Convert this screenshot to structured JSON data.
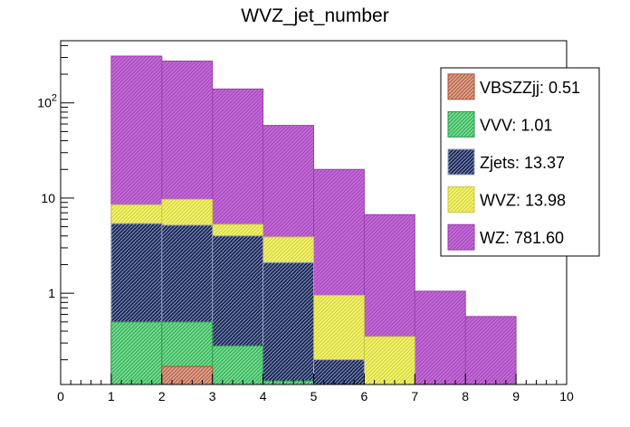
{
  "chart_data": {
    "type": "bar",
    "subtype": "stacked-step-histogram",
    "title": "WVZ_jet_number",
    "xlabel": "",
    "ylabel": "",
    "xlim": [
      0,
      10
    ],
    "ylim": [
      0.11,
      450
    ],
    "yscale": "log",
    "x_ticks": [
      "0",
      "1",
      "2",
      "3",
      "4",
      "5",
      "6",
      "7",
      "8",
      "9",
      "10"
    ],
    "y_ticks": [
      {
        "value": 1,
        "base": "1",
        "exp": ""
      },
      {
        "value": 10,
        "base": "10",
        "exp": ""
      },
      {
        "value": 100,
        "base": "10",
        "exp": "2"
      }
    ],
    "bin_edges": [
      1,
      2,
      3,
      4,
      5,
      6,
      7,
      8,
      9
    ],
    "series": [
      {
        "name": "VBSZZjj",
        "legend": "VBSZZjj: 0.51",
        "color": "#d9a08c",
        "hatch": "#b05030",
        "cumulative": [
          0,
          0.17,
          0,
          0,
          0,
          0,
          0,
          0
        ]
      },
      {
        "name": "VVV",
        "legend": "VVV: 1.01",
        "color": "#6fdc8c",
        "hatch": "#2d9a50",
        "cumulative": [
          0.5,
          0.5,
          0.28,
          0.12,
          0,
          0,
          0,
          0
        ]
      },
      {
        "name": "Zjets",
        "legend": "Zjets: 13.37",
        "color": "#1a2a5a",
        "hatch": "#9aa0c0",
        "cumulative": [
          5.4,
          5.2,
          4.0,
          2.1,
          0.2,
          0,
          0,
          0
        ]
      },
      {
        "name": "WVZ",
        "legend": "WVZ: 13.98",
        "color": "#f4f46a",
        "hatch": "#c8c840",
        "cumulative": [
          8.5,
          9.7,
          5.3,
          3.9,
          0.95,
          0.35,
          0,
          0
        ]
      },
      {
        "name": "WZ",
        "legend": "WZ: 781.60",
        "color": "#c46ad8",
        "hatch": "#9a3fb0",
        "cumulative": [
          310,
          275,
          140,
          58,
          20,
          6.7,
          1.05,
          0.57
        ]
      }
    ],
    "legend_position": "top-right"
  }
}
